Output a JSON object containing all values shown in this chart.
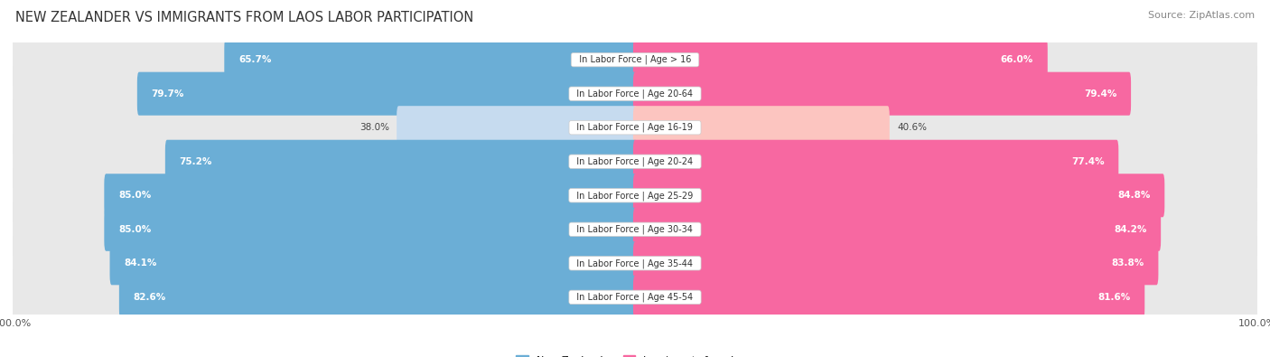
{
  "title": "NEW ZEALANDER VS IMMIGRANTS FROM LAOS LABOR PARTICIPATION",
  "source": "Source: ZipAtlas.com",
  "categories": [
    "In Labor Force | Age > 16",
    "In Labor Force | Age 20-64",
    "In Labor Force | Age 16-19",
    "In Labor Force | Age 20-24",
    "In Labor Force | Age 25-29",
    "In Labor Force | Age 30-34",
    "In Labor Force | Age 35-44",
    "In Labor Force | Age 45-54"
  ],
  "nz_values": [
    65.7,
    79.7,
    38.0,
    75.2,
    85.0,
    85.0,
    84.1,
    82.6
  ],
  "imm_values": [
    66.0,
    79.4,
    40.6,
    77.4,
    84.8,
    84.2,
    83.8,
    81.6
  ],
  "nz_color": "#6baed6",
  "nz_color_light": "#c6dbef",
  "imm_color": "#f768a1",
  "imm_color_light": "#fcc5c0",
  "row_bg_color": "#e8e8e8",
  "center_label_bg": "#ffffff",
  "max_val": 100.0,
  "legend_nz": "New Zealander",
  "legend_imm": "Immigrants from Laos",
  "title_fontsize": 10.5,
  "source_fontsize": 8,
  "bar_label_fontsize": 7.5,
  "category_fontsize": 7,
  "legend_fontsize": 8,
  "axis_label_fontsize": 8
}
